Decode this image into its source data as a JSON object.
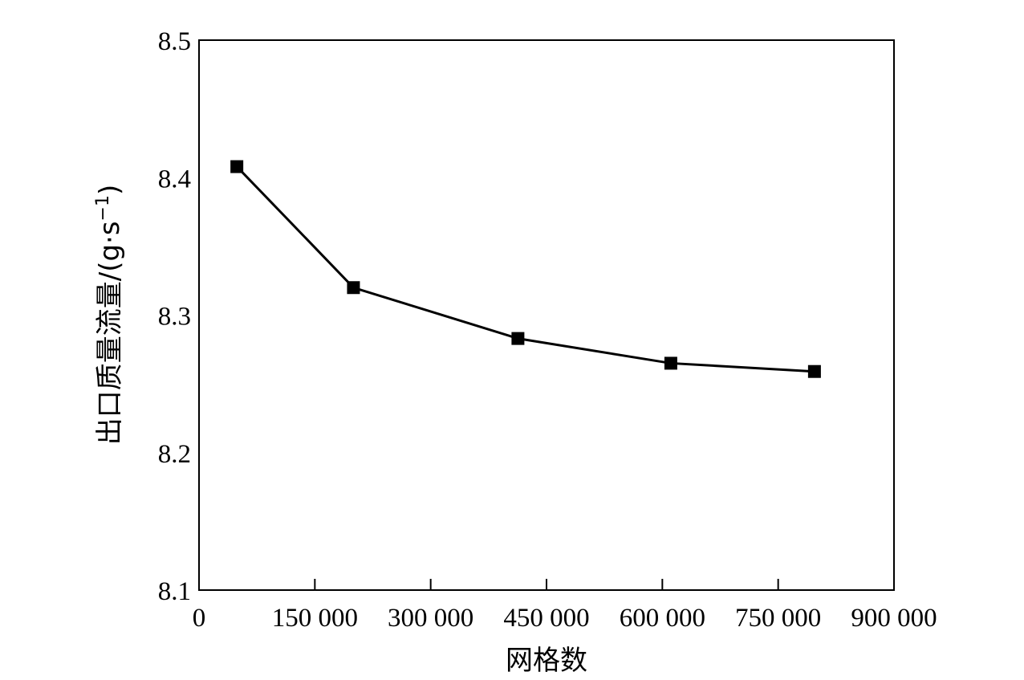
{
  "chart_data": {
    "type": "line",
    "title": "",
    "xlabel": "网格数",
    "ylabel": "出口质量流量/(g·s",
    "ylabel_sup": "−1",
    "ylabel_close": ")",
    "xlim": [
      0,
      900000
    ],
    "ylim": [
      8.1,
      8.5
    ],
    "x_ticks": [
      0,
      150000,
      300000,
      450000,
      600000,
      750000,
      900000
    ],
    "x_tick_labels": [
      "0",
      "150 000",
      "300 000",
      "450 000",
      "600 000",
      "750 000",
      "900 000"
    ],
    "y_ticks": [
      8.1,
      8.2,
      8.3,
      8.4,
      8.5
    ],
    "y_tick_labels": [
      "8.1",
      "8.2",
      "8.3",
      "8.4",
      "8.5"
    ],
    "grid": false,
    "legend": "none",
    "marker": "square",
    "line_color": "#000000",
    "series": [
      {
        "x": [
          49000,
          200000,
          413000,
          611000,
          797000
        ],
        "y": [
          8.408,
          8.32,
          8.283,
          8.265,
          8.259
        ]
      }
    ]
  }
}
